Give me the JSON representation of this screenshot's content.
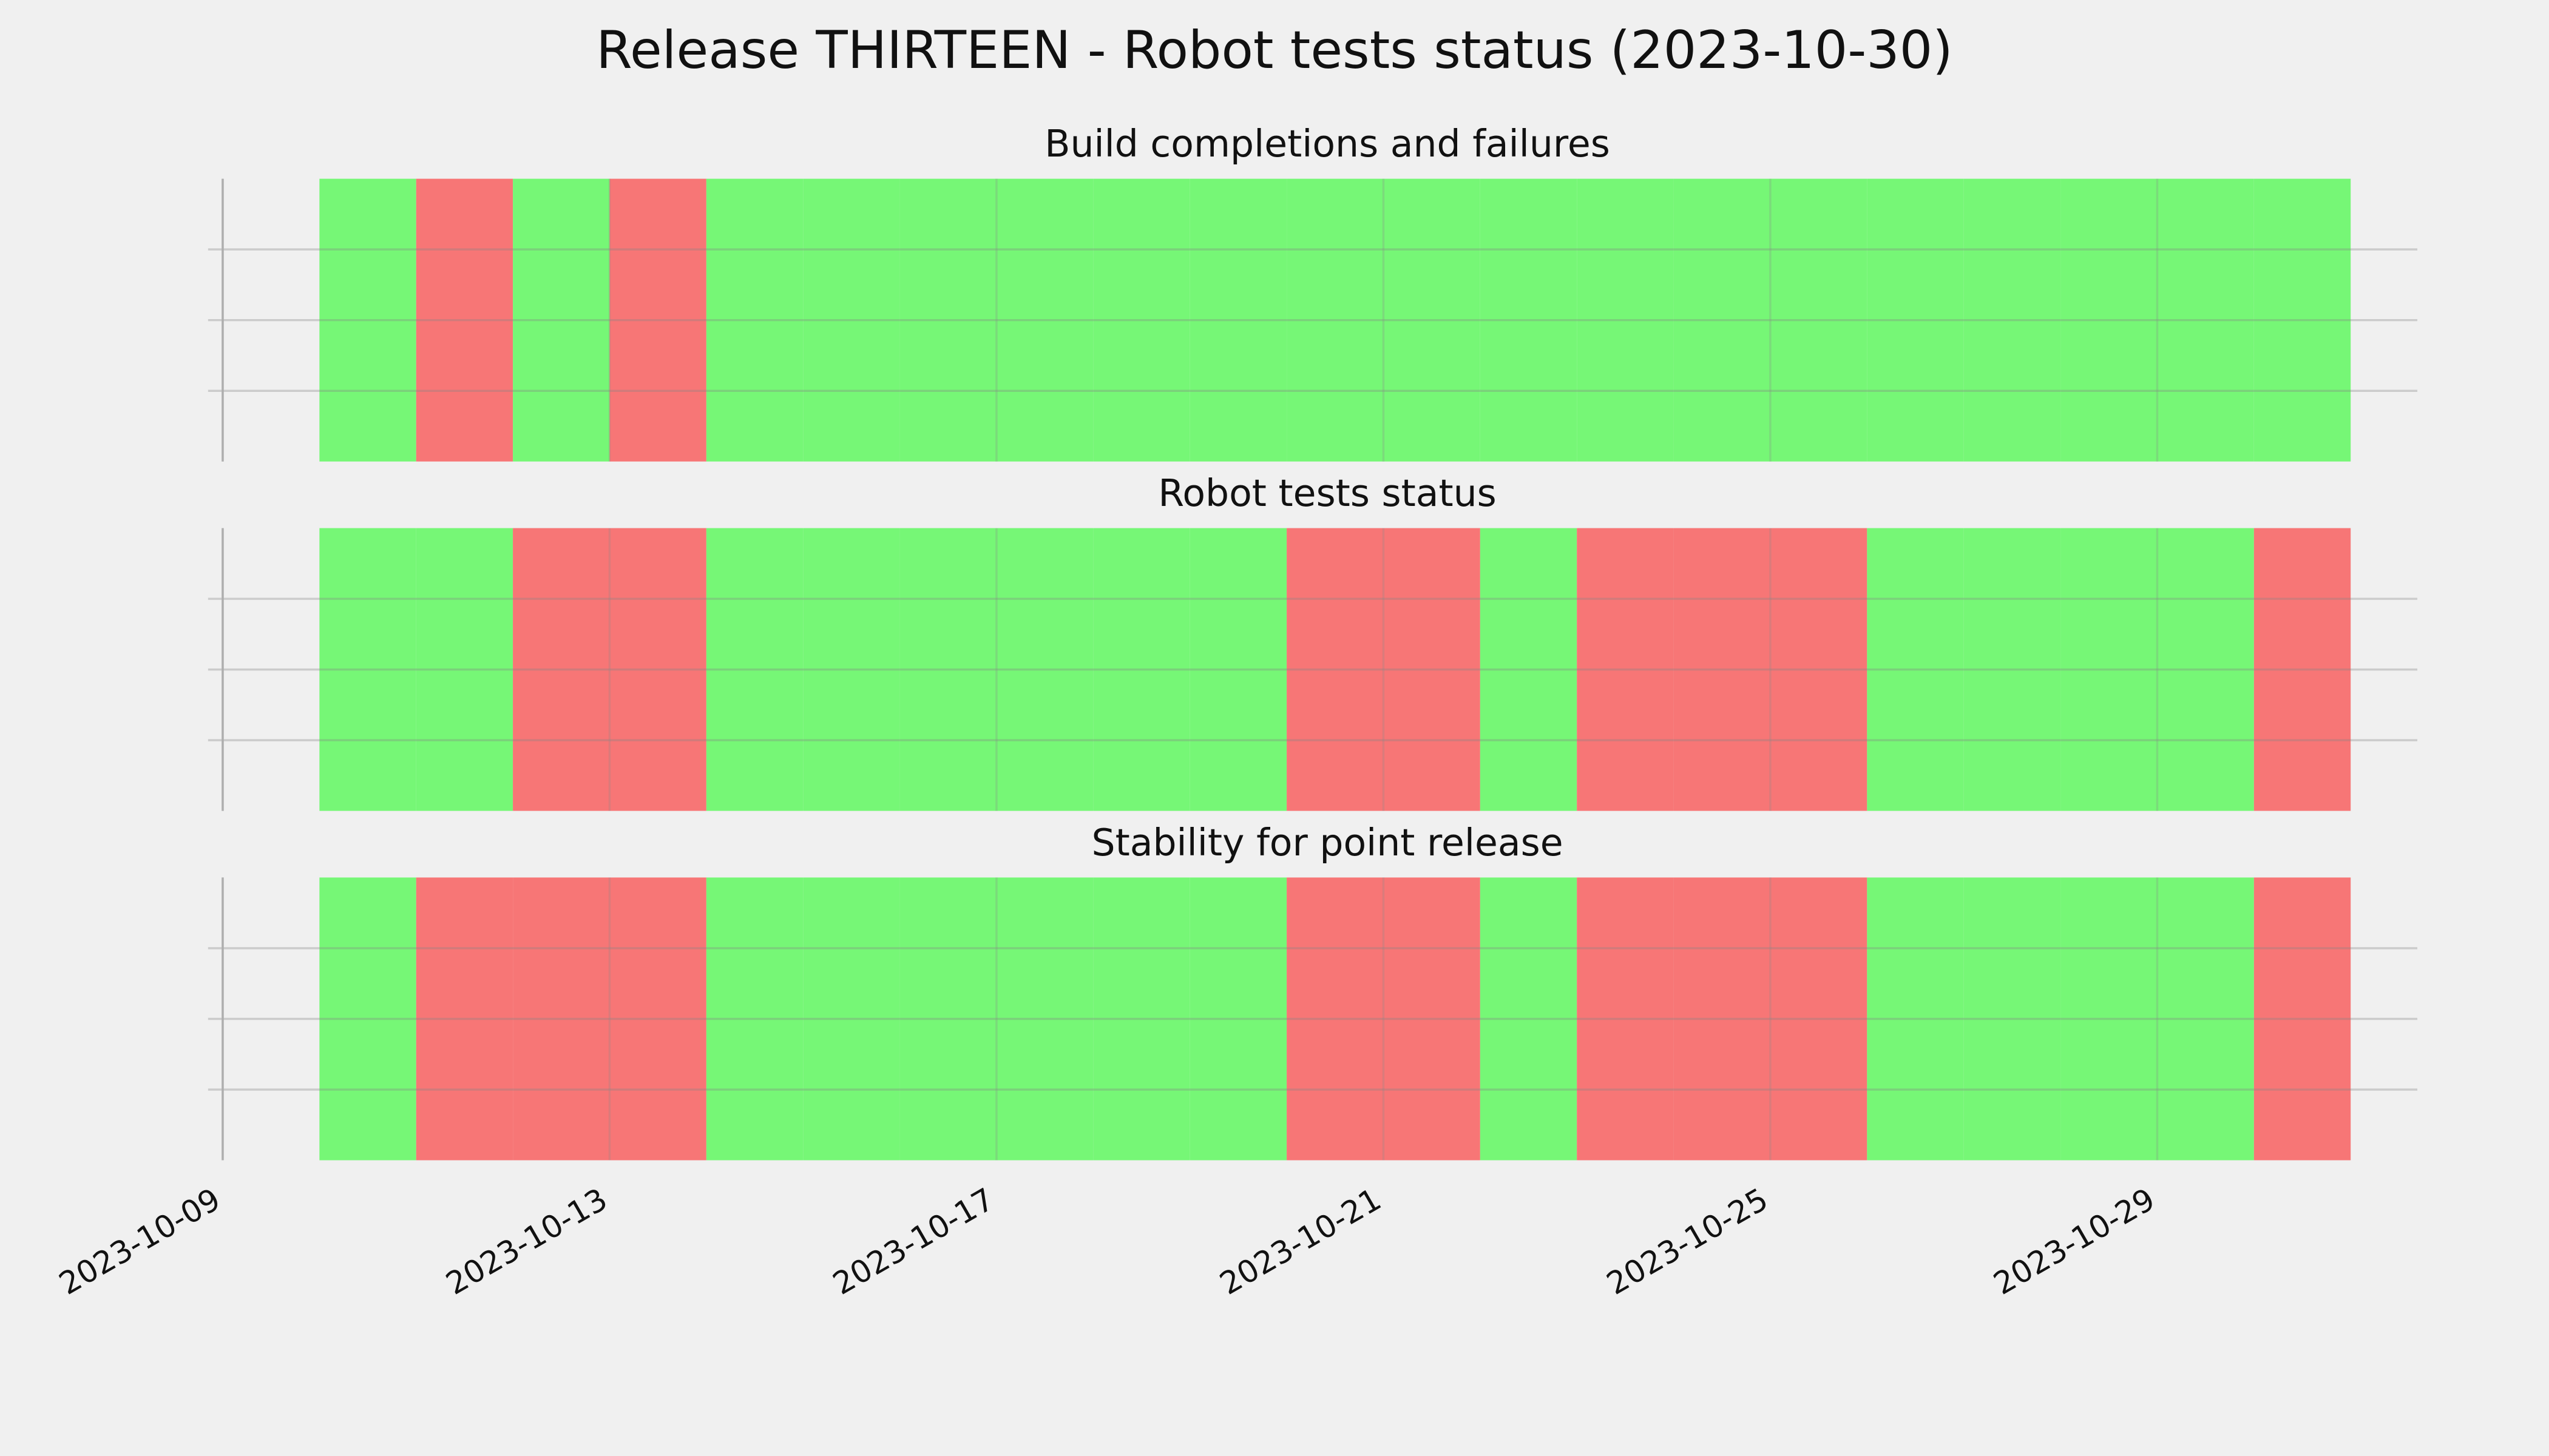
{
  "title": "Release THIRTEEN - Robot tests status (2023-10-30)",
  "chart_data": [
    {
      "type": "timeline",
      "title": "Build completions and failures",
      "x": [
        "2023-10-10",
        "2023-10-11",
        "2023-10-12",
        "2023-10-13",
        "2023-10-14",
        "2023-10-15",
        "2023-10-16",
        "2023-10-17",
        "2023-10-18",
        "2023-10-19",
        "2023-10-20",
        "2023-10-21",
        "2023-10-22",
        "2023-10-23",
        "2023-10-24",
        "2023-10-25",
        "2023-10-26",
        "2023-10-27",
        "2023-10-28",
        "2023-10-29",
        "2023-10-30"
      ],
      "values": [
        1,
        0,
        1,
        0,
        1,
        1,
        1,
        1,
        1,
        1,
        1,
        1,
        1,
        1,
        1,
        1,
        1,
        1,
        1,
        1,
        1
      ],
      "status_colors": [
        "#f77676",
        "#76f776"
      ],
      "xlim": [
        "2023-10-09",
        "2023-10-31"
      ],
      "xticks": [
        "2023-10-09",
        "2023-10-13",
        "2023-10-17",
        "2023-10-21",
        "2023-10-25",
        "2023-10-29"
      ],
      "grid": true
    },
    {
      "type": "timeline",
      "title": "Robot tests status",
      "x": [
        "2023-10-10",
        "2023-10-11",
        "2023-10-12",
        "2023-10-13",
        "2023-10-14",
        "2023-10-15",
        "2023-10-16",
        "2023-10-17",
        "2023-10-18",
        "2023-10-19",
        "2023-10-20",
        "2023-10-21",
        "2023-10-22",
        "2023-10-23",
        "2023-10-24",
        "2023-10-25",
        "2023-10-26",
        "2023-10-27",
        "2023-10-28",
        "2023-10-29",
        "2023-10-30"
      ],
      "values": [
        1,
        1,
        0,
        0,
        1,
        1,
        1,
        1,
        1,
        1,
        0,
        0,
        1,
        0,
        0,
        0,
        1,
        1,
        1,
        1,
        0
      ],
      "status_colors": [
        "#f77676",
        "#76f776"
      ],
      "xlim": [
        "2023-10-09",
        "2023-10-31"
      ],
      "xticks": [
        "2023-10-09",
        "2023-10-13",
        "2023-10-17",
        "2023-10-21",
        "2023-10-25",
        "2023-10-29"
      ],
      "grid": true
    },
    {
      "type": "timeline",
      "title": "Stability for point release",
      "x": [
        "2023-10-10",
        "2023-10-11",
        "2023-10-12",
        "2023-10-13",
        "2023-10-14",
        "2023-10-15",
        "2023-10-16",
        "2023-10-17",
        "2023-10-18",
        "2023-10-19",
        "2023-10-20",
        "2023-10-21",
        "2023-10-22",
        "2023-10-23",
        "2023-10-24",
        "2023-10-25",
        "2023-10-26",
        "2023-10-27",
        "2023-10-28",
        "2023-10-29",
        "2023-10-30"
      ],
      "values": [
        1,
        0,
        0,
        0,
        1,
        1,
        1,
        1,
        1,
        1,
        0,
        0,
        1,
        0,
        0,
        0,
        1,
        1,
        1,
        1,
        0
      ],
      "status_colors": [
        "#f77676",
        "#76f776"
      ],
      "xlim": [
        "2023-10-09",
        "2023-10-31"
      ],
      "xticks": [
        "2023-10-09",
        "2023-10-13",
        "2023-10-17",
        "2023-10-21",
        "2023-10-25",
        "2023-10-29"
      ],
      "grid": true
    }
  ]
}
